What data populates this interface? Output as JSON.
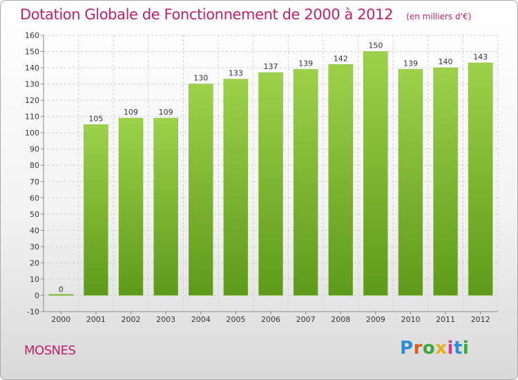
{
  "header": {
    "title": "Dotation Globale de Fonctionnement de 2000 à 2012",
    "unit": "(en milliers d'€)"
  },
  "footer": {
    "place": "MOSNES",
    "logo": "Proxiti"
  },
  "colors": {
    "title": "#c0206e",
    "bar_light": "#9dd14a",
    "bar_dark": "#5e9a1a",
    "grid": "#d0d0d0"
  },
  "chart_data": {
    "type": "bar",
    "title": "Dotation Globale de Fonctionnement de 2000 à 2012",
    "xlabel": "",
    "ylabel": "",
    "categories": [
      "2000",
      "2001",
      "2002",
      "2003",
      "2004",
      "2005",
      "2006",
      "2007",
      "2008",
      "2009",
      "2010",
      "2011",
      "2012"
    ],
    "values": [
      0,
      105,
      109,
      109,
      130,
      133,
      137,
      139,
      142,
      150,
      139,
      140,
      143
    ],
    "ylim": [
      -10,
      160
    ],
    "yticks": [
      -10,
      0,
      10,
      20,
      30,
      40,
      50,
      60,
      70,
      80,
      90,
      100,
      110,
      120,
      130,
      140,
      150,
      160
    ],
    "grid": "horizontal dashed",
    "legend": "none"
  }
}
